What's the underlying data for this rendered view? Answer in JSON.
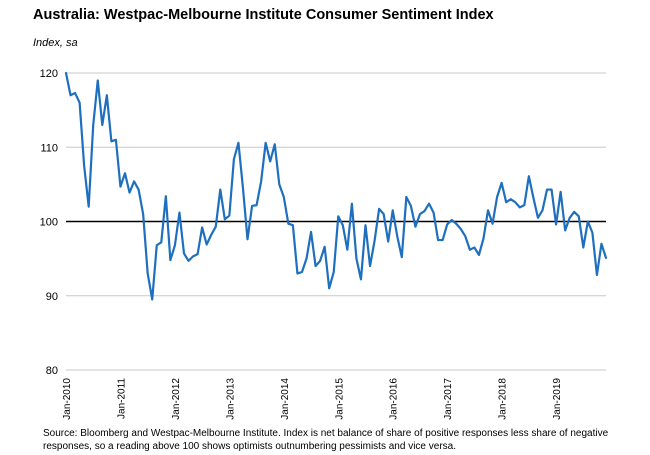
{
  "title": "Australia: Westpac-Melbourne Institute Consumer Sentiment Index",
  "subtitle": "Index, sa",
  "source": "Source: Bloomberg and Westpac-Melbourne Institute.  Index is net balance of share of positive responses less share of negative responses, so a reading above 100 shows optimists outnumbering pessimists and vice versa.",
  "colors": {
    "line": "#1F6FBF",
    "grid": "#C8C8C8",
    "baseline": "#000000"
  },
  "chart_data": {
    "type": "line",
    "title": "Australia: Westpac-Melbourne Institute Consumer Sentiment Index",
    "ylabel": "Index, sa",
    "xlabel": "",
    "ylim": [
      80,
      120
    ],
    "yticks": [
      80,
      90,
      100,
      110,
      120
    ],
    "reference_line": 100,
    "grid": true,
    "x_start": "Jan-2010",
    "frequency": "monthly",
    "xtick_labels": [
      "Jan-2010",
      "Jan-2011",
      "Jan-2012",
      "Jan-2013",
      "Jan-2014",
      "Jan-2015",
      "Jan-2016",
      "Jan-2017",
      "Jan-2018",
      "Jan-2019"
    ],
    "series": [
      {
        "name": "Consumer Sentiment Index",
        "values": [
          120.0,
          117.0,
          117.3,
          116.0,
          107.5,
          102.0,
          113.0,
          119.0,
          113.0,
          117.0,
          110.8,
          111.0,
          104.7,
          106.5,
          103.9,
          105.4,
          104.3,
          101.0,
          93.0,
          89.5,
          96.8,
          97.2,
          103.4,
          94.8,
          96.8,
          101.2,
          95.7,
          94.7,
          95.3,
          95.6,
          99.2,
          96.9,
          98.2,
          99.3,
          104.3,
          100.3,
          100.8,
          108.4,
          110.6,
          104.5,
          97.6,
          102.1,
          102.2,
          105.4,
          110.6,
          108.1,
          110.4,
          105.0,
          103.3,
          99.7,
          99.5,
          93.0,
          93.2,
          95.0,
          98.6,
          94.0,
          94.7,
          96.6,
          91.0,
          93.2,
          100.7,
          99.5,
          96.2,
          102.4,
          95.0,
          92.2,
          99.5,
          94.0,
          97.4,
          101.7,
          101.0,
          97.3,
          101.5,
          98.0,
          95.2,
          103.3,
          102.1,
          99.3,
          101.0,
          101.4,
          102.4,
          101.2,
          97.5,
          97.5,
          99.6,
          100.2,
          99.7,
          99.0,
          98.0,
          96.2,
          96.5,
          95.5,
          97.7,
          101.5,
          99.7,
          103.3,
          105.2,
          102.6,
          103.0,
          102.6,
          101.9,
          102.2,
          106.1,
          103.2,
          100.5,
          101.5,
          104.3,
          104.3,
          99.6,
          104.0,
          98.8,
          100.5,
          101.3,
          100.7,
          96.5,
          100.0,
          98.5,
          92.8,
          97.0,
          95.1
        ]
      }
    ]
  }
}
